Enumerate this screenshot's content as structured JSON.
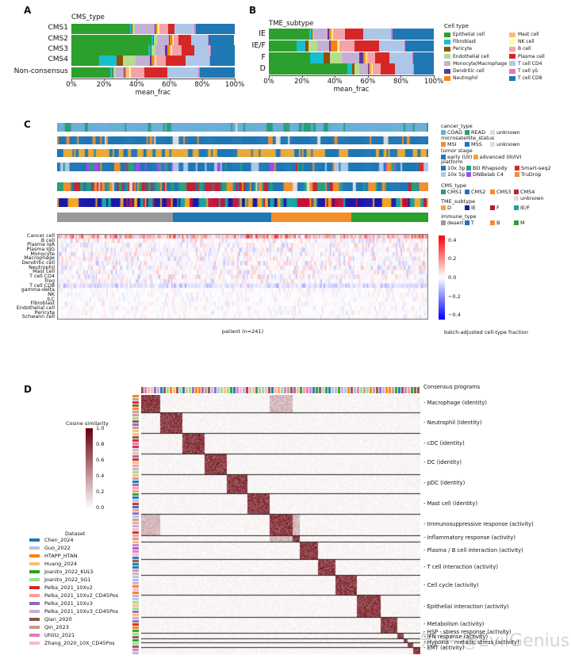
{
  "panels": {
    "a": "A",
    "b": "B",
    "c": "C",
    "d": "D"
  },
  "cell_types": [
    {
      "name": "Epithelial cell",
      "color": "#2ca02c"
    },
    {
      "name": "Fibroblast",
      "color": "#17becf"
    },
    {
      "name": "Pericyte",
      "color": "#8c510a"
    },
    {
      "name": "Endothelial cell",
      "color": "#b5de8a"
    },
    {
      "name": "Monocyte/Macrophage",
      "color": "#c5b0d5"
    },
    {
      "name": "Dendritic cell",
      "color": "#5b3a96"
    },
    {
      "name": "Neutrophil",
      "color": "#ff7f0e"
    },
    {
      "name": "Mast cell",
      "color": "#ffbb78"
    },
    {
      "name": "NK cell",
      "color": "#ffff99"
    },
    {
      "name": "B cell",
      "color": "#f4a3a8"
    },
    {
      "name": "Plasma cell",
      "color": "#d62728"
    },
    {
      "name": "T cell CD4",
      "color": "#aec7e8"
    },
    {
      "name": "T cell γδ",
      "color": "#e377c2"
    },
    {
      "name": "T cell CD8",
      "color": "#1f77b4"
    }
  ],
  "chart_data": [
    {
      "type": "bar",
      "orientation": "horizontal-stacked",
      "title": "CMS_type",
      "xlabel": "mean_frac",
      "xticks": [
        "0%",
        "20%",
        "40%",
        "60%",
        "80%",
        "100%"
      ],
      "xlim": [
        0,
        100
      ],
      "categories": [
        "CMS1",
        "CMS2",
        "CMS3",
        "CMS4",
        "Non-consensus"
      ],
      "values_pct": [
        [
          36,
          1,
          0.5,
          1.5,
          12,
          0.5,
          1,
          0.5,
          0.8,
          5.2,
          4,
          12,
          1,
          24
        ],
        [
          49,
          1,
          0.5,
          2,
          7,
          0.5,
          1.5,
          0.5,
          0.5,
          3,
          8,
          10,
          0.5,
          15.5
        ],
        [
          47,
          1.5,
          0.5,
          2.5,
          6,
          1,
          1.5,
          1,
          0.5,
          6,
          7.5,
          10,
          0.5,
          14.5
        ],
        [
          17,
          10.5,
          4,
          8,
          8.5,
          1,
          1.5,
          1,
          0.5,
          6,
          12,
          14.5,
          0.5,
          15
        ],
        [
          24,
          1,
          0.5,
          1.5,
          5,
          0.5,
          1,
          2,
          1,
          8,
          14,
          19,
          1,
          21.5
        ]
      ]
    },
    {
      "type": "bar",
      "orientation": "horizontal-stacked",
      "title": "TME_subtype",
      "xlabel": "mean_frac",
      "xticks": [
        "0%",
        "20%",
        "40%",
        "60%",
        "80%",
        "100%"
      ],
      "xlim": [
        0,
        100
      ],
      "legend_title": "Cell type",
      "legend_position": "right",
      "categories": [
        "IE",
        "IE/F",
        "F",
        "D"
      ],
      "values_pct": [
        [
          24.5,
          1.5,
          0.5,
          0.5,
          8.5,
          1,
          1,
          1,
          0.5,
          7,
          11,
          17,
          1,
          25
        ],
        [
          17,
          5,
          2,
          5.5,
          7,
          1,
          4,
          0.5,
          1,
          9,
          15,
          15,
          0.5,
          17.5
        ],
        [
          25,
          8,
          4,
          7,
          11,
          2,
          1,
          1,
          0.5,
          5,
          8.5,
          14,
          0.5,
          12.5
        ],
        [
          47.5,
          3,
          1.5,
          3,
          5,
          0.5,
          1,
          1,
          0.5,
          5,
          8.5,
          11,
          0.5,
          12
        ]
      ]
    },
    {
      "type": "heatmap",
      "xlabel": "patient (n=241)",
      "rows": [
        "Cancer cell",
        "B cell",
        "Plasma IgA",
        "Plasma IgG",
        "Monocyte",
        "Macrophage",
        "Dendritic cell",
        "Neutrophil",
        "Mast cell",
        "T cell CD4",
        "Treg",
        "T cell CD8",
        "gamma-delta",
        "NK",
        "ILC",
        "Fibroblast",
        "Endothelial cell",
        "Pericyte",
        "Schwann cell"
      ],
      "colorbar_label": "batch-adjusted cell-type fraction",
      "colorbar_ticks": [
        "0.4",
        "0.2",
        "0.0",
        "−0.2",
        "−0.4"
      ],
      "clim": [
        -0.45,
        0.45
      ],
      "immune_type_counts": {
        "desert": 75,
        "T": 64,
        "B": 52,
        "M": 50
      }
    },
    {
      "type": "heatmap",
      "colorbar_title": "Cosine similarity",
      "colorbar_ticks": [
        "1.0",
        "0.8",
        "0.6",
        "0.4",
        "0.2",
        "0.0"
      ],
      "clim": [
        0,
        1
      ],
      "programs_title": "Consensus programs",
      "programs": [
        "- Macrophage (identity)",
        "- Neutrophil (identity)",
        "- cDC (identity)",
        "- DC (identity)",
        "- pDC (identity)",
        "- Mast cell (identity)",
        "- Immunosuppressive response (activity)",
        "- Inflammatory response (activity)",
        "- Plasma / B cell interaction (activity)",
        "- T cell interaction (activity)",
        "- Cell cycle (activity)",
        "- Epithelial interaction (activity)",
        "- Metabolism (activity)",
        "- HSP - stress response (activity)",
        "- IFN response (activity)",
        "- Hypoxia - metallic stress (activity)",
        "- EMT (activity)"
      ]
    }
  ],
  "annotations": {
    "groups": [
      {
        "title": "cancer_type",
        "items": [
          {
            "label": "COAD",
            "color": "#6baed6"
          },
          {
            "label": "READ",
            "color": "#2a9d7c"
          },
          {
            "label": "unknown",
            "color": "#dddddd"
          }
        ]
      },
      {
        "title": "microsatellite_status",
        "items": [
          {
            "label": "MSI",
            "color": "#f28e2b"
          },
          {
            "label": "MSS",
            "color": "#1f77b4"
          },
          {
            "label": "unknown",
            "color": "#dddddd"
          }
        ]
      },
      {
        "title": "tumor stage",
        "items": [
          {
            "label": "early (I/II)",
            "color": "#1f77b4"
          },
          {
            "label": "advanced (III/IV)",
            "color": "#e8a838"
          }
        ]
      },
      {
        "title": "platform",
        "items": [
          {
            "label": "10x 3p",
            "color": "#1f77b4"
          },
          {
            "label": "BD Rhapsody",
            "color": "#2a9d7c"
          },
          {
            "label": "Smart-seq2",
            "color": "#d62728"
          },
          {
            "label": "10x 5p",
            "color": "#aec7e8"
          },
          {
            "label": "DNBelab C4",
            "color": "#9b4dea"
          },
          {
            "label": "TruDrop",
            "color": "#f28e2b"
          }
        ]
      },
      {
        "title": "CMS_type",
        "items": [
          {
            "label": "CMS1",
            "color": "#2a9d7c"
          },
          {
            "label": "CMS2",
            "color": "#1f77b4"
          },
          {
            "label": "CMS3",
            "color": "#f28e2b"
          },
          {
            "label": "CMS4",
            "color": "#c0222f"
          },
          {
            "label": "unknown",
            "color": "#dddddd"
          }
        ]
      },
      {
        "title": "TME_subtype",
        "items": [
          {
            "label": "D",
            "color": "#f5a623"
          },
          {
            "label": "IE",
            "color": "#1a1aa8"
          },
          {
            "label": "F",
            "color": "#c2123b"
          },
          {
            "label": "IE/F",
            "color": "#17a2a2"
          }
        ]
      },
      {
        "title": "immune_type",
        "items": [
          {
            "label": "desert",
            "color": "#999999"
          },
          {
            "label": "T",
            "color": "#1f77b4"
          },
          {
            "label": "B",
            "color": "#f28e2b"
          },
          {
            "label": "M",
            "color": "#2ca02c"
          }
        ]
      }
    ]
  },
  "datasets": {
    "title": "Dataset",
    "items": [
      {
        "label": "Chen_2024",
        "color": "#1f77b4"
      },
      {
        "label": "Guo_2022",
        "color": "#aec7e8"
      },
      {
        "label": "HTAPP_HTAN",
        "color": "#ff7f0e"
      },
      {
        "label": "Huang_2024",
        "color": "#ffbb78"
      },
      {
        "label": "Joanito_2022_KUL5",
        "color": "#2ca02c"
      },
      {
        "label": "Joanito_2022_SG1",
        "color": "#98df8a"
      },
      {
        "label": "Pelka_2021_10Xv2",
        "color": "#d62728"
      },
      {
        "label": "Pelka_2021_10Xv2_CD45Pos",
        "color": "#ff9896"
      },
      {
        "label": "Pelka_2021_10Xv3",
        "color": "#9467bd"
      },
      {
        "label": "Pelka_2021_10Xv3_CD45Pos",
        "color": "#c5b0d5"
      },
      {
        "label": "Qian_2020",
        "color": "#8c564b"
      },
      {
        "label": "Qin_2023",
        "color": "#c49c94"
      },
      {
        "label": "Uhlitz_2021",
        "color": "#e377c2"
      },
      {
        "label": "Zhang_2020_10X_CD45Pos",
        "color": "#f7b6d2"
      }
    ]
  },
  "watermark": "知乎 @EvilGenius"
}
